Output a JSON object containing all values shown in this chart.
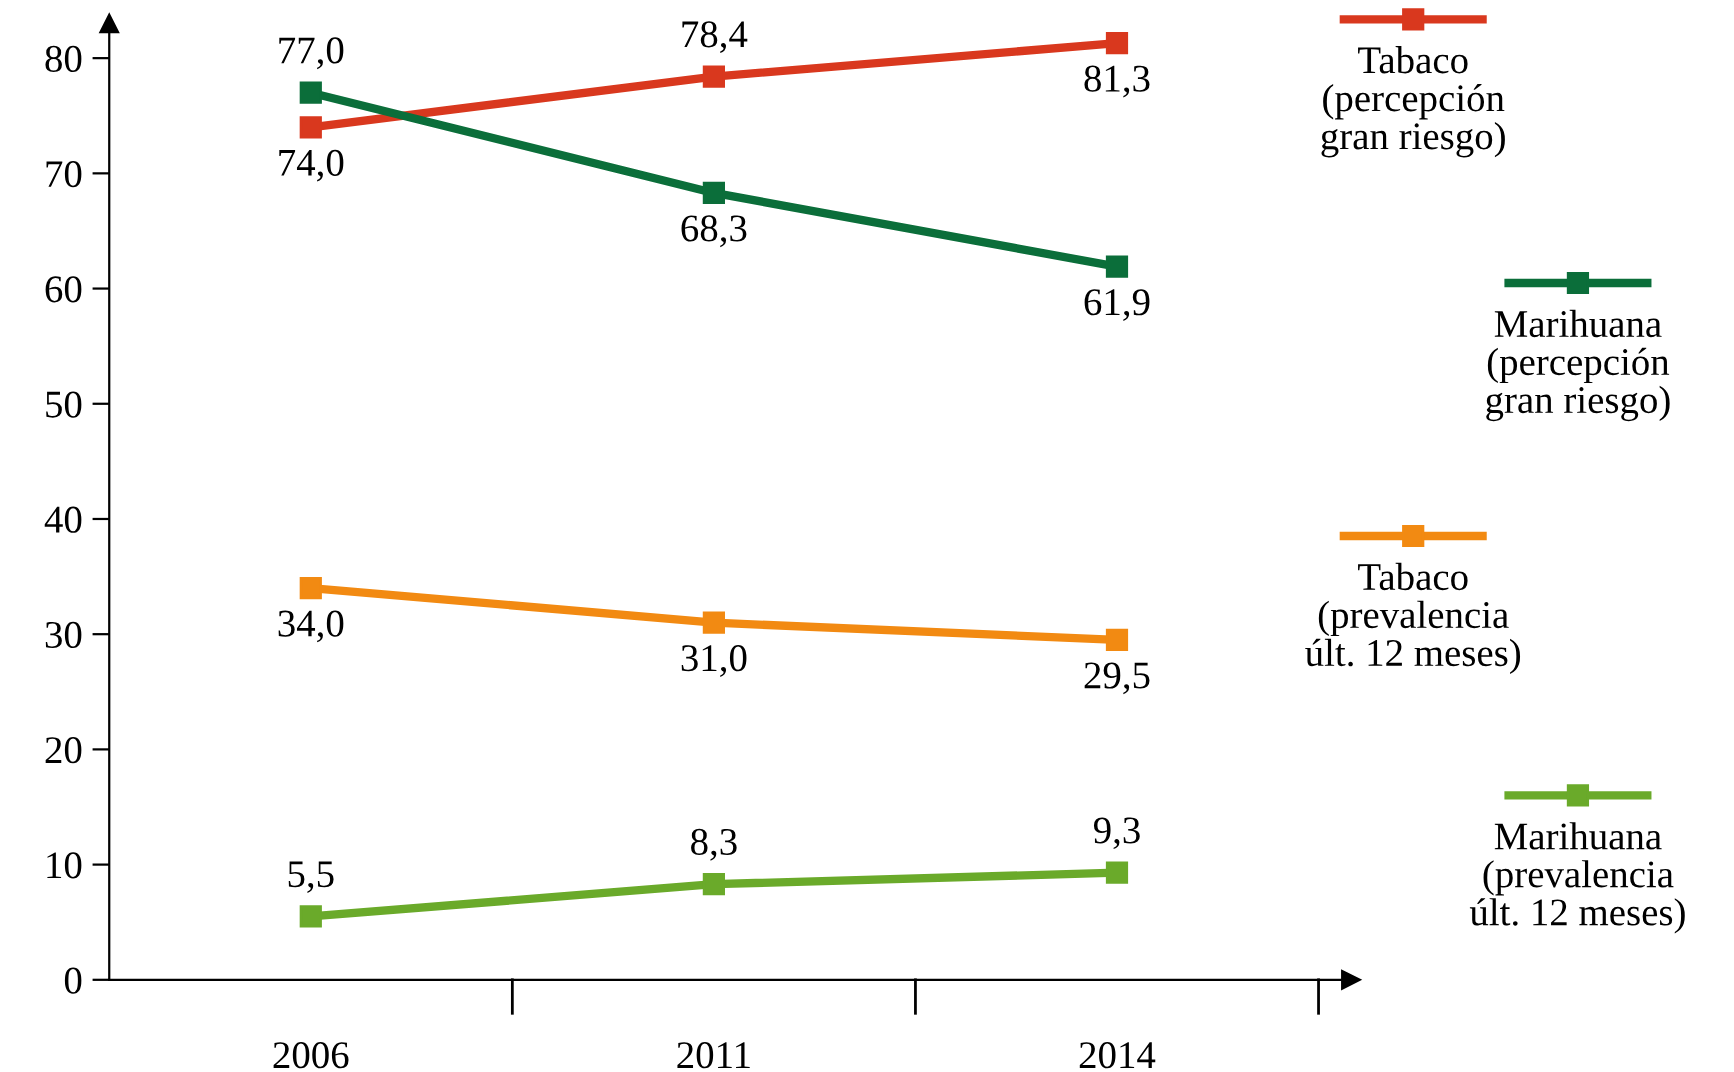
{
  "chart_data": {
    "type": "line",
    "categories": [
      "2006",
      "2011",
      "2014"
    ],
    "ylim": [
      0,
      83
    ],
    "yticks": [
      0,
      10,
      20,
      30,
      40,
      50,
      60,
      70,
      80
    ],
    "grid": false,
    "legend": "right",
    "marker": "square",
    "line_style": "solid",
    "series": [
      {
        "name": "Tabaco\n(percepción\ngran riesgo)",
        "color": "#d9381e",
        "values": [
          74.0,
          78.4,
          81.3
        ],
        "value_labels": [
          "74,0",
          "78,4",
          "81,3"
        ]
      },
      {
        "name": "Marihuana\n(percepción\ngran riesgo)",
        "color": "#0b6e3a",
        "values": [
          77.0,
          68.3,
          61.9
        ],
        "value_labels": [
          "77,0",
          "68,3",
          "61,9"
        ]
      },
      {
        "name": "Tabaco\n(prevalencia\núlt. 12 meses)",
        "color": "#f28a12",
        "values": [
          34.0,
          31.0,
          29.5
        ],
        "value_labels": [
          "34,0",
          "31,0",
          "29,5"
        ]
      },
      {
        "name": "Marihuana\n(prevalencia\núlt. 12 meses)",
        "color": "#6aaa2a",
        "values": [
          5.5,
          8.3,
          9.3
        ],
        "value_labels": [
          "5,5",
          "8,3",
          "9,3"
        ]
      }
    ]
  }
}
